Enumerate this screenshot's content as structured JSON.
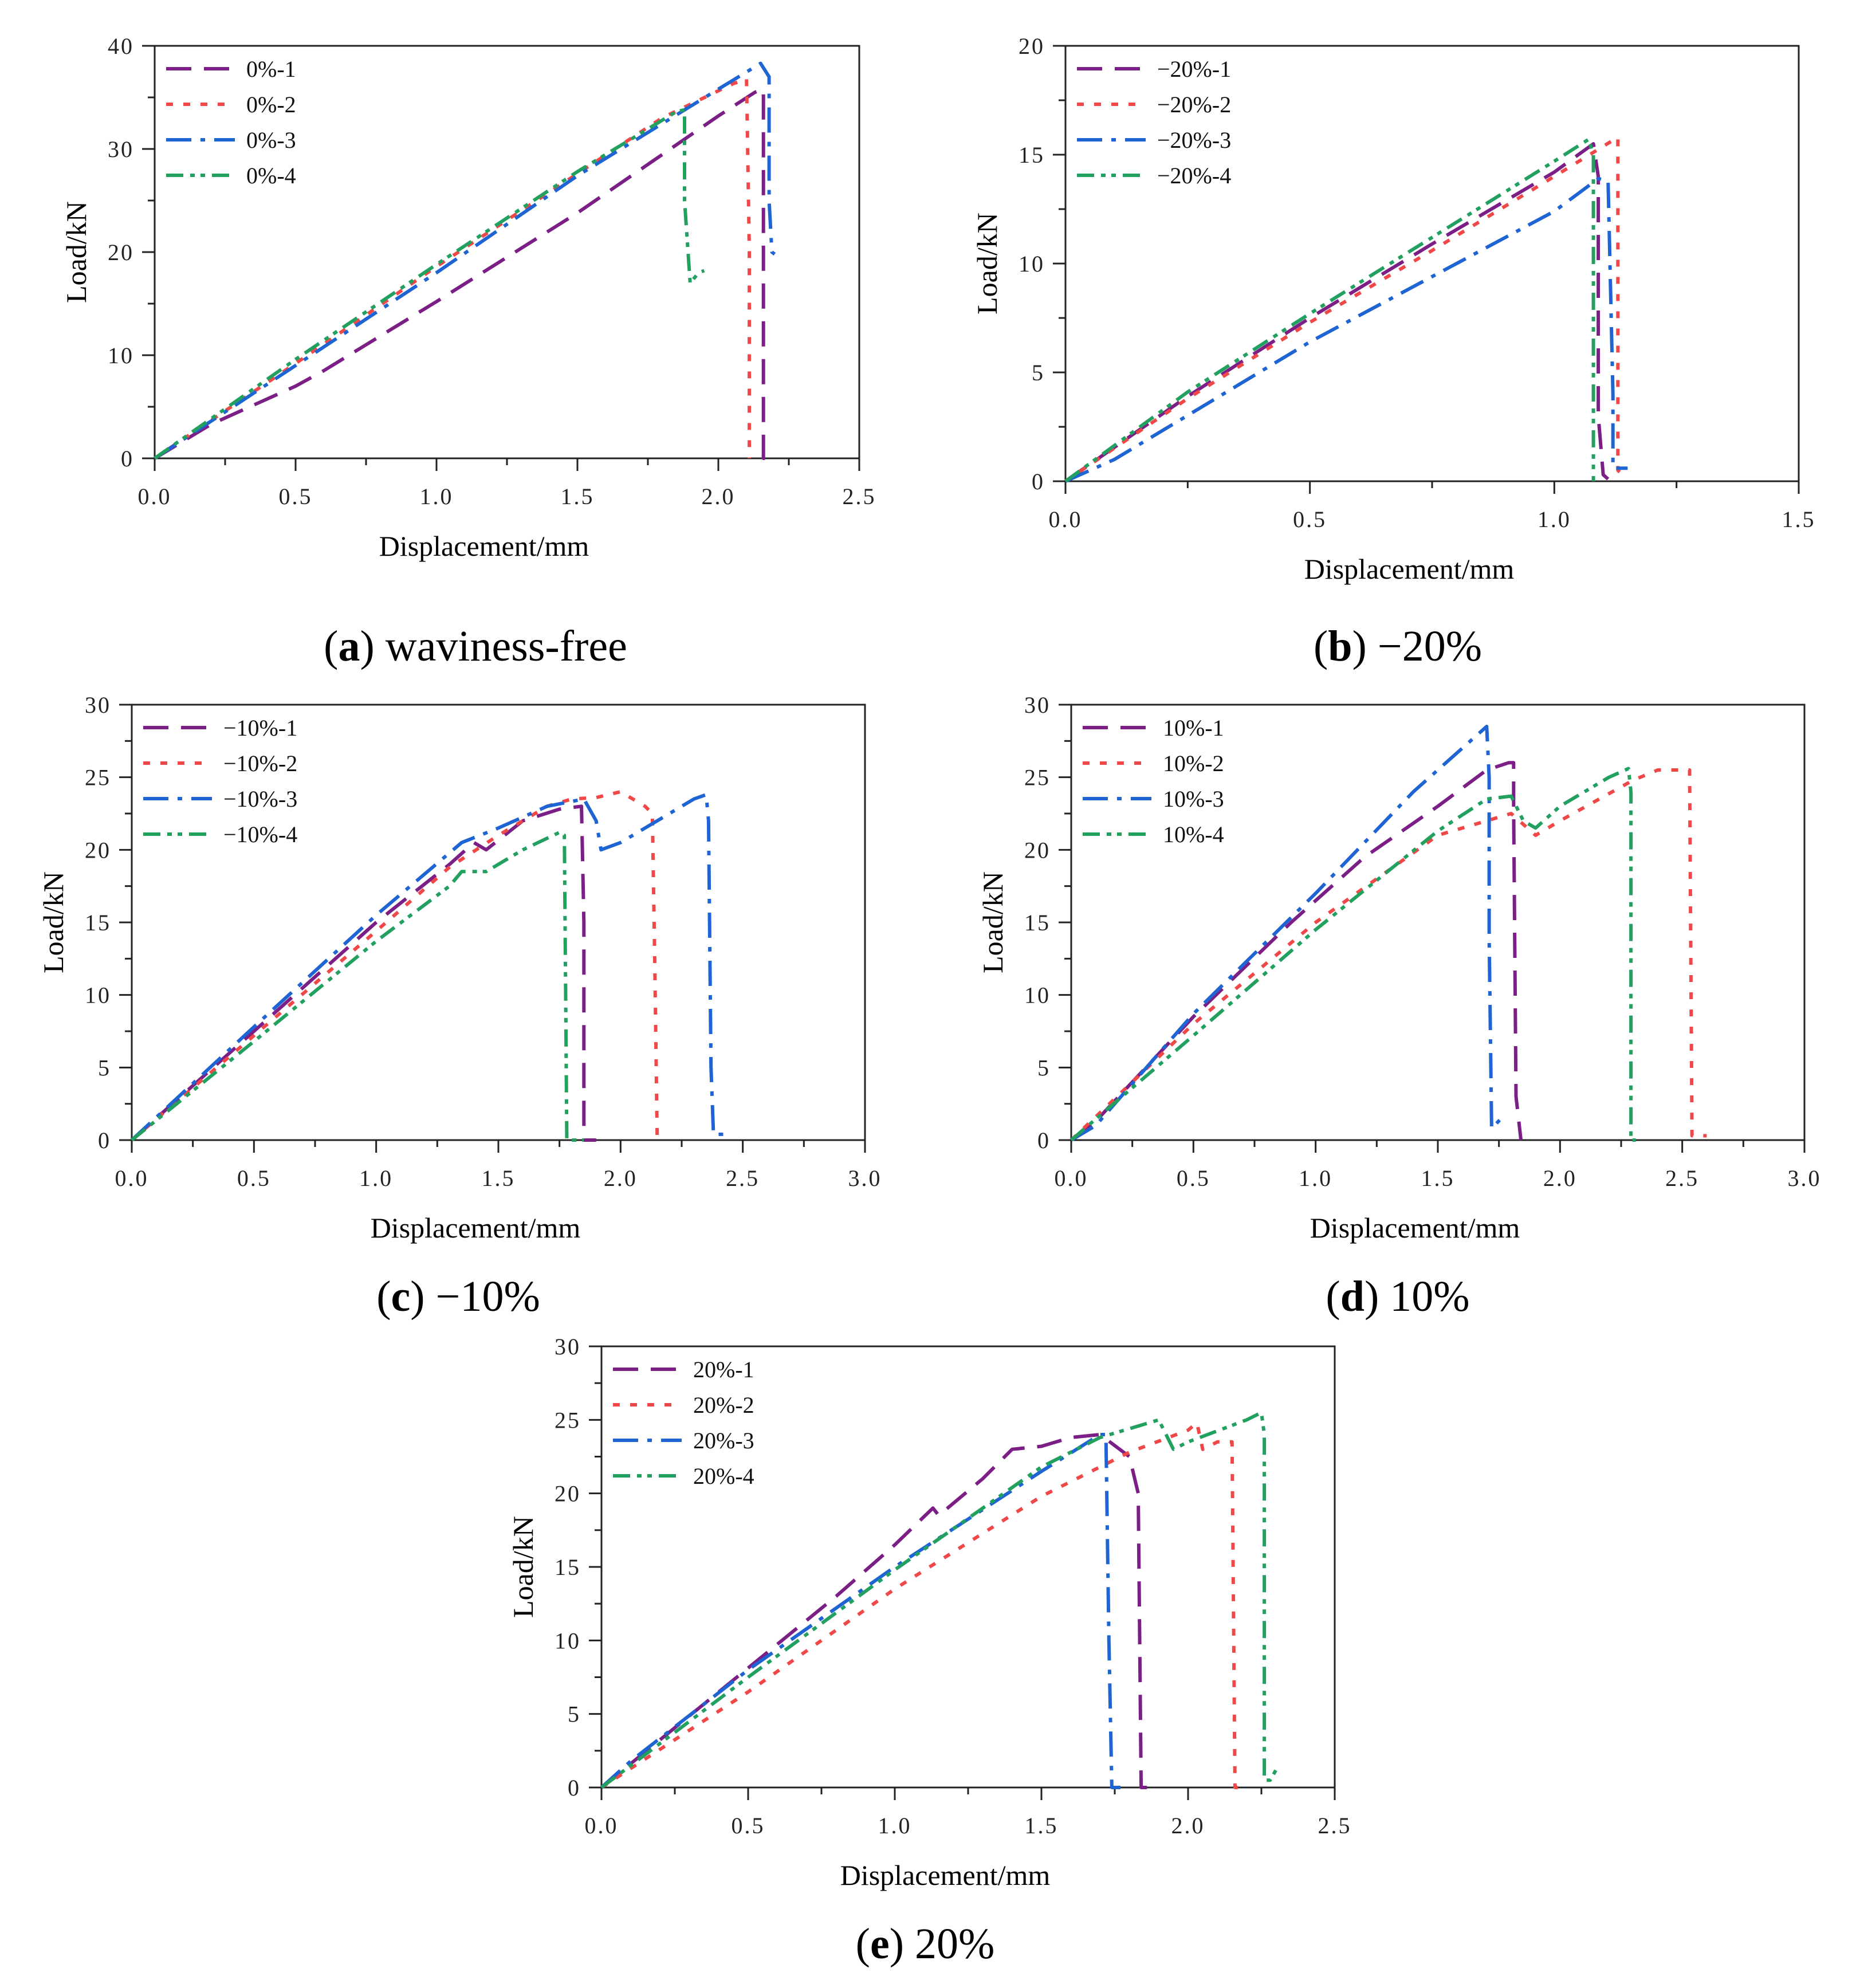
{
  "colors": {
    "s1": "#7b1f86",
    "s2": "#f04848",
    "s3": "#1e64d2",
    "s4": "#22a060"
  },
  "chart_data": [
    {
      "id": "a",
      "type": "line",
      "caption": {
        "letter": "a",
        "text": "waviness-free"
      },
      "xlabel": "Displacement/mm",
      "ylabel": "Load/kN",
      "xlim": [
        0,
        2.5
      ],
      "ylim": [
        0,
        40
      ],
      "xticks": [
        "0.0",
        "0.5",
        "1.0",
        "1.5",
        "2.0",
        "2.5"
      ],
      "yticks": [
        "0",
        "10",
        "20",
        "30",
        "40"
      ],
      "series": [
        {
          "name": "0%-1",
          "points": [
            [
              0,
              0
            ],
            [
              0.2,
              3.3
            ],
            [
              0.5,
              7
            ],
            [
              0.6,
              8.5
            ],
            [
              1.0,
              15.2
            ],
            [
              1.5,
              23.8
            ],
            [
              2.0,
              33.2
            ],
            [
              2.13,
              35.5
            ],
            [
              2.16,
              35.8
            ],
            [
              2.16,
              0
            ],
            [
              2.18,
              0
            ]
          ]
        },
        {
          "name": "0%-2",
          "points": [
            [
              0,
              0
            ],
            [
              0.5,
              9.2
            ],
            [
              1.0,
              18.6
            ],
            [
              1.5,
              27.6
            ],
            [
              1.8,
              33
            ],
            [
              2.05,
              36.3
            ],
            [
              2.1,
              36.8
            ],
            [
              2.11,
              20
            ],
            [
              2.11,
              0
            ]
          ]
        },
        {
          "name": "0%-3",
          "points": [
            [
              0,
              0
            ],
            [
              0.5,
              9
            ],
            [
              1.0,
              18
            ],
            [
              1.5,
              27.4
            ],
            [
              2.0,
              35.8
            ],
            [
              2.15,
              38.3
            ],
            [
              2.18,
              37
            ],
            [
              2.18,
              25
            ],
            [
              2.19,
              20
            ],
            [
              2.2,
              19.8
            ]
          ]
        },
        {
          "name": "0%-4",
          "points": [
            [
              0,
              0
            ],
            [
              0.5,
              9.6
            ],
            [
              1.0,
              18.8
            ],
            [
              1.5,
              27.8
            ],
            [
              1.85,
              33.6
            ],
            [
              1.88,
              33.8
            ],
            [
              1.88,
              25
            ],
            [
              1.9,
              17
            ],
            [
              1.93,
              18
            ],
            [
              1.95,
              18.2
            ]
          ]
        }
      ]
    },
    {
      "id": "b",
      "type": "line",
      "caption": {
        "letter": "b",
        "text": "−20%"
      },
      "xlabel": "Displacement/mm",
      "ylabel": "Load/kN",
      "xlim": [
        0,
        1.5
      ],
      "ylim": [
        0,
        20
      ],
      "xticks": [
        "0.0",
        "0.5",
        "1.0",
        "1.5"
      ],
      "yticks": [
        "0",
        "5",
        "10",
        "15",
        "20"
      ],
      "series": [
        {
          "name": "−20%-1",
          "points": [
            [
              0,
              0
            ],
            [
              0.25,
              3.9
            ],
            [
              0.5,
              7.5
            ],
            [
              0.75,
              10.9
            ],
            [
              1.0,
              14.2
            ],
            [
              1.08,
              15.5
            ],
            [
              1.09,
              14
            ],
            [
              1.09,
              3
            ],
            [
              1.1,
              0.3
            ],
            [
              1.11,
              0.1
            ]
          ]
        },
        {
          "name": "−20%-2",
          "points": [
            [
              0,
              0
            ],
            [
              0.25,
              3.8
            ],
            [
              0.5,
              7.3
            ],
            [
              0.75,
              10.6
            ],
            [
              1.0,
              14
            ],
            [
              1.13,
              15.8
            ],
            [
              1.13,
              0.5
            ],
            [
              1.14,
              0.3
            ]
          ]
        },
        {
          "name": "−20%-3",
          "points": [
            [
              0,
              0
            ],
            [
              0.1,
              1
            ],
            [
              0.3,
              3.7
            ],
            [
              0.5,
              6.4
            ],
            [
              0.75,
              9.4
            ],
            [
              1.0,
              12.4
            ],
            [
              1.09,
              13.9
            ],
            [
              1.11,
              13.8
            ],
            [
              1.12,
              4
            ],
            [
              1.12,
              0.6
            ],
            [
              1.15,
              0.6
            ]
          ]
        },
        {
          "name": "−20%-4",
          "points": [
            [
              0,
              0
            ],
            [
              0.25,
              4.1
            ],
            [
              0.5,
              7.7
            ],
            [
              0.75,
              11.2
            ],
            [
              1.0,
              14.7
            ],
            [
              1.07,
              15.7
            ],
            [
              1.08,
              15
            ],
            [
              1.08,
              5
            ],
            [
              1.08,
              0
            ]
          ]
        }
      ]
    },
    {
      "id": "c",
      "type": "line",
      "caption": {
        "letter": "c",
        "text": "−10%"
      },
      "xlabel": "Displacement/mm",
      "ylabel": "Load/kN",
      "xlim": [
        0,
        3.0
      ],
      "ylim": [
        0,
        30
      ],
      "xticks": [
        "0.0",
        "0.5",
        "1.0",
        "1.5",
        "2.0",
        "2.5",
        "3.0"
      ],
      "yticks": [
        "0",
        "5",
        "10",
        "15",
        "20",
        "25",
        "30"
      ],
      "series": [
        {
          "name": "−10%-1",
          "points": [
            [
              0,
              0
            ],
            [
              0.5,
              7.5
            ],
            [
              1.0,
              15
            ],
            [
              1.3,
              19
            ],
            [
              1.4,
              20.5
            ],
            [
              1.45,
              20
            ],
            [
              1.6,
              22
            ],
            [
              1.75,
              22.8
            ],
            [
              1.84,
              23
            ],
            [
              1.85,
              15
            ],
            [
              1.85,
              0
            ],
            [
              1.9,
              0
            ]
          ]
        },
        {
          "name": "−10%-2",
          "points": [
            [
              0,
              0
            ],
            [
              0.5,
              7.2
            ],
            [
              1.0,
              14.4
            ],
            [
              1.3,
              18.8
            ],
            [
              1.5,
              21
            ],
            [
              1.7,
              23
            ],
            [
              1.8,
              23.5
            ],
            [
              1.9,
              23.6
            ],
            [
              2.0,
              24
            ],
            [
              2.05,
              23.5
            ],
            [
              2.1,
              23
            ],
            [
              2.13,
              22.5
            ],
            [
              2.14,
              12
            ],
            [
              2.15,
              0
            ],
            [
              2.17,
              0
            ]
          ]
        },
        {
          "name": "−10%-3",
          "points": [
            [
              0,
              0
            ],
            [
              0.5,
              7.8
            ],
            [
              1.0,
              15.5
            ],
            [
              1.35,
              20.5
            ],
            [
              1.5,
              21.5
            ],
            [
              1.7,
              23
            ],
            [
              1.85,
              23.5
            ],
            [
              1.9,
              22
            ],
            [
              1.92,
              20
            ],
            [
              2.0,
              20.5
            ],
            [
              2.2,
              22.5
            ],
            [
              2.3,
              23.5
            ],
            [
              2.35,
              23.8
            ],
            [
              2.36,
              22
            ],
            [
              2.37,
              5
            ],
            [
              2.38,
              0.4
            ],
            [
              2.43,
              0.4
            ]
          ]
        },
        {
          "name": "−10%-4",
          "points": [
            [
              0,
              0
            ],
            [
              0.5,
              6.8
            ],
            [
              1.0,
              13.7
            ],
            [
              1.3,
              17.5
            ],
            [
              1.35,
              18.5
            ],
            [
              1.45,
              18.5
            ],
            [
              1.6,
              20
            ],
            [
              1.75,
              21.2
            ],
            [
              1.77,
              21
            ],
            [
              1.78,
              0
            ],
            [
              1.85,
              0
            ]
          ]
        }
      ]
    },
    {
      "id": "d",
      "type": "line",
      "caption": {
        "letter": "d",
        "text": "10%"
      },
      "xlabel": "Displacement/mm",
      "ylabel": "Load/kN",
      "xlim": [
        0,
        3.0
      ],
      "ylim": [
        0,
        30
      ],
      "xticks": [
        "0.0",
        "0.5",
        "1.0",
        "1.5",
        "2.0",
        "2.5",
        "3.0"
      ],
      "yticks": [
        "0",
        "5",
        "10",
        "15",
        "20",
        "25",
        "30"
      ],
      "series": [
        {
          "name": "10%-1",
          "points": [
            [
              0,
              0
            ],
            [
              0.1,
              1.3
            ],
            [
              0.5,
              8.5
            ],
            [
              0.9,
              15
            ],
            [
              1.2,
              19.5
            ],
            [
              1.5,
              23
            ],
            [
              1.7,
              25.5
            ],
            [
              1.79,
              26
            ],
            [
              1.81,
              26
            ],
            [
              1.81,
              23
            ],
            [
              1.82,
              3
            ],
            [
              1.84,
              0
            ]
          ]
        },
        {
          "name": "10%-2",
          "points": [
            [
              0,
              0
            ],
            [
              0.5,
              8
            ],
            [
              1.0,
              15
            ],
            [
              1.5,
              21
            ],
            [
              1.8,
              22.5
            ],
            [
              1.9,
              21
            ],
            [
              2.0,
              22
            ],
            [
              2.3,
              24.8
            ],
            [
              2.4,
              25.5
            ],
            [
              2.53,
              25.5
            ],
            [
              2.54,
              0.3
            ],
            [
              2.6,
              0.3
            ]
          ]
        },
        {
          "name": "10%-3",
          "points": [
            [
              0,
              0
            ],
            [
              0.1,
              1
            ],
            [
              0.5,
              8.7
            ],
            [
              1.0,
              17
            ],
            [
              1.4,
              24
            ],
            [
              1.7,
              28.5
            ],
            [
              1.71,
              25
            ],
            [
              1.71,
              14
            ],
            [
              1.72,
              0.8
            ],
            [
              1.76,
              1.5
            ]
          ]
        },
        {
          "name": "10%-4",
          "points": [
            [
              0,
              0
            ],
            [
              0.5,
              7.2
            ],
            [
              1.0,
              14.5
            ],
            [
              1.5,
              21.3
            ],
            [
              1.7,
              23.5
            ],
            [
              1.8,
              23.7
            ],
            [
              1.85,
              22
            ],
            [
              1.9,
              21.5
            ],
            [
              2.0,
              23
            ],
            [
              2.2,
              25
            ],
            [
              2.28,
              25.6
            ],
            [
              2.29,
              24
            ],
            [
              2.29,
              0
            ],
            [
              2.31,
              0
            ]
          ]
        }
      ]
    },
    {
      "id": "e",
      "type": "line",
      "caption": {
        "letter": "e",
        "text": "20%"
      },
      "xlabel": "Displacement/mm",
      "ylabel": "Load/kN",
      "xlim": [
        0,
        2.5
      ],
      "ylim": [
        0,
        30
      ],
      "xticks": [
        "0.0",
        "0.5",
        "1.0",
        "1.5",
        "2.0",
        "2.5"
      ],
      "yticks": [
        "0",
        "5",
        "10",
        "15",
        "20",
        "25",
        "30"
      ],
      "series": [
        {
          "name": "20%-1",
          "points": [
            [
              0,
              0
            ],
            [
              0.4,
              6.5
            ],
            [
              0.8,
              13
            ],
            [
              1.0,
              16.5
            ],
            [
              1.13,
              19
            ],
            [
              1.15,
              18.5
            ],
            [
              1.3,
              21
            ],
            [
              1.4,
              23
            ],
            [
              1.5,
              23.2
            ],
            [
              1.6,
              23.8
            ],
            [
              1.7,
              24
            ],
            [
              1.8,
              22.5
            ],
            [
              1.83,
              20
            ],
            [
              1.84,
              0
            ],
            [
              1.86,
              0
            ]
          ]
        },
        {
          "name": "20%-2",
          "points": [
            [
              0,
              0
            ],
            [
              0.5,
              6.5
            ],
            [
              1.0,
              13.5
            ],
            [
              1.5,
              19.8
            ],
            [
              1.8,
              22.8
            ],
            [
              2.0,
              24.3
            ],
            [
              2.03,
              24.8
            ],
            [
              2.05,
              23
            ],
            [
              2.1,
              23.5
            ],
            [
              2.15,
              23.5
            ],
            [
              2.16,
              0
            ],
            [
              2.17,
              0
            ]
          ]
        },
        {
          "name": "20%-3",
          "points": [
            [
              0,
              0
            ],
            [
              0.1,
              1.8
            ],
            [
              0.5,
              8
            ],
            [
              1.0,
              15
            ],
            [
              1.5,
              21.5
            ],
            [
              1.7,
              24
            ],
            [
              1.72,
              24
            ],
            [
              1.73,
              10
            ],
            [
              1.74,
              0
            ],
            [
              1.77,
              0
            ]
          ]
        },
        {
          "name": "20%-4",
          "points": [
            [
              0,
              0
            ],
            [
              0.5,
              7.5
            ],
            [
              1.0,
              14.8
            ],
            [
              1.5,
              21.8
            ],
            [
              1.7,
              23.8
            ],
            [
              1.9,
              25
            ],
            [
              1.95,
              23
            ],
            [
              2.0,
              23.5
            ],
            [
              2.2,
              25
            ],
            [
              2.25,
              25.5
            ],
            [
              2.26,
              24
            ],
            [
              2.26,
              0.5
            ],
            [
              2.28,
              0.5
            ],
            [
              2.3,
              1.2
            ]
          ]
        }
      ]
    }
  ]
}
